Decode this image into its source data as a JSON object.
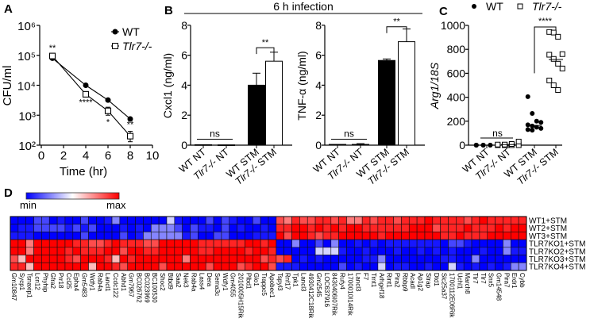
{
  "panels": {
    "a": "A",
    "b": "B",
    "c": "C",
    "d": "D"
  },
  "chart_data": [
    {
      "type": "line",
      "panel": "A",
      "xlabel": "Time (hr)",
      "ylabel": "CFU/ml",
      "yscale": "log",
      "ylim": [
        100,
        1000000
      ],
      "ytick_values": [
        100,
        1000,
        10000,
        100000,
        1000000
      ],
      "ytick_labels": [
        "10²",
        "10³",
        "10⁴",
        "10⁵",
        "10⁶"
      ],
      "xlim": [
        0,
        10
      ],
      "xticks": [
        0,
        2,
        4,
        6,
        8,
        10
      ],
      "legend": {
        "placement": "top-right",
        "entries": [
          "WT",
          "Tlr7-/-"
        ]
      },
      "series": [
        {
          "name": "WT",
          "marker": "filled-circle",
          "x": [
            1,
            4,
            6,
            8
          ],
          "y": [
            80000,
            10000,
            3200,
            750
          ]
        },
        {
          "name": "Tlr7-/-",
          "marker": "open-square",
          "x": [
            1,
            4,
            6,
            8
          ],
          "y": [
            95000,
            5000,
            1400,
            200
          ],
          "err_low": [
            85000,
            4500,
            1000,
            130
          ],
          "err_high": [
            105000,
            5600,
            1850,
            290
          ]
        }
      ],
      "annotations": [
        {
          "x": 1,
          "text": "**",
          "position": "above"
        },
        {
          "x": 4,
          "text": "****",
          "position": "below"
        },
        {
          "x": 6,
          "text": "*",
          "position": "below"
        },
        {
          "x": 8,
          "text": "**",
          "position": "above"
        }
      ]
    },
    {
      "type": "bar",
      "panel": "B",
      "title": "6 h infection",
      "ylabel": "Cxcl1 (ng/ml)",
      "categories": [
        "WT NT",
        "Tlr7-/- NT",
        "WT STM",
        "Tlr7-/- STM"
      ],
      "values": [
        0.03,
        0.02,
        4.0,
        5.6
      ],
      "errors": [
        0,
        0,
        0.8,
        0.6
      ],
      "fills": [
        "#000000",
        "#ffffff",
        "#000000",
        "#ffffff"
      ],
      "ylim": [
        0,
        8
      ],
      "yticks": [
        0,
        2,
        4,
        6,
        8
      ],
      "brackets": [
        {
          "from": 0,
          "to": 1,
          "level": 0.4,
          "text": "ns"
        },
        {
          "from": 2,
          "to": 3,
          "level": 6.5,
          "text": "**"
        }
      ]
    },
    {
      "type": "bar",
      "panel": "B",
      "ylabel": "TNF-α (ng/ml)",
      "categories": [
        "WT NT",
        "Tlr7-/- NT",
        "WT STM",
        "Tlr7-/- STM"
      ],
      "values": [
        0.05,
        0.05,
        5.65,
        6.9
      ],
      "errors": [
        0,
        0.05,
        0.1,
        0.85
      ],
      "fills": [
        "#000000",
        "#ffffff",
        "#000000",
        "#ffffff"
      ],
      "ylim": [
        0,
        8
      ],
      "yticks": [
        0,
        2,
        4,
        6,
        8
      ],
      "brackets": [
        {
          "from": 0,
          "to": 1,
          "level": 0.4,
          "text": "ns"
        },
        {
          "from": 2,
          "to": 3,
          "level": 7.9,
          "text": "**"
        }
      ]
    },
    {
      "type": "scatter",
      "panel": "C",
      "ylabel": "Arg1/18S",
      "categories": [
        "WT NT",
        "Tlr7-/- NT",
        "WT STM",
        "Tlr7-/- STM"
      ],
      "ylim": [
        0,
        1000
      ],
      "yticks": [
        0,
        200,
        400,
        600,
        800,
        1000
      ],
      "legend": {
        "placement": "top",
        "entries": [
          "WT",
          "Tlr7-/-"
        ]
      },
      "groups": [
        {
          "category": "WT NT",
          "marker": "filled-circle",
          "values": [
            0,
            0,
            0,
            0,
            0,
            0,
            0,
            0,
            0,
            0
          ],
          "mean": 0
        },
        {
          "category": "Tlr7-/- NT",
          "marker": "open-square",
          "values": [
            0,
            0,
            0,
            0,
            5,
            5,
            10,
            30
          ],
          "mean": 5
        },
        {
          "category": "WT STM",
          "marker": "filled-circle",
          "values": [
            405,
            265,
            200,
            190,
            170,
            160,
            150,
            140,
            130,
            125
          ],
          "mean": 165
        },
        {
          "category": "Tlr7-/- STM",
          "marker": "open-square",
          "values": [
            945,
            940,
            905,
            760,
            755,
            720,
            680,
            640,
            540,
            500,
            460
          ],
          "mean": 715
        }
      ],
      "brackets": [
        {
          "from": 0,
          "to": 1,
          "level": 60,
          "text": "ns"
        },
        {
          "from": 2,
          "to": 3,
          "level": 1000,
          "text": "****"
        }
      ]
    },
    {
      "type": "heatmap",
      "panel": "D",
      "colorbar": {
        "min_label": "min",
        "max_label": "max",
        "min_color": "#0000ff",
        "mid_color": "#ffffff",
        "max_color": "#ff0000"
      },
      "value_scale": "0 (min) to 9 (max), one digit per column",
      "rows": [
        "WT1+STM",
        "WT2+STM",
        "WT3+STM",
        "TLR7KO1+STM",
        "TLR7KO2+STM",
        "TLR7KO3+STM",
        "TLR7KO4+STM"
      ],
      "columns": [
        "Gm10847",
        "Sycp1",
        "Tsnaxip1",
        "Lcn12",
        "Phyhip",
        "Gfra2",
        "Prr18",
        "Ccl25",
        "Epha4",
        "Gm5483",
        "Wdfy1",
        "Rab4a",
        "Lancl1",
        "Ccdc122",
        "Abhd1",
        "Gm7967",
        "BC026762",
        "BC023969",
        "BC100530",
        "Shoc2",
        "Btbd9",
        "Saa2",
        "Nek3",
        "Rab4a",
        "Lass4",
        "Dera",
        "Sema3c",
        "Wdfy1",
        "Gm4055",
        "2010005H15Rik",
        "Plbd1",
        "Glo1",
        "Trappc5",
        "Apobec1",
        "Tspyl3",
        "Rnf17",
        "Tpk1",
        "Lancl3",
        "4930412C18Rik",
        "Gm2545",
        "LOC637916",
        "8430406I07Rik",
        "Rufy4",
        "1700010I14Rik",
        "Lancl3",
        "F7",
        "Trnt1",
        "Arhgef18",
        "Rint1",
        "Pira2",
        "Rbbp9",
        "Acadl",
        "Ap1g2",
        "Strap",
        "Dtd1",
        "Slc25a37",
        "1700112E06Rik",
        "Uchl1",
        "March8",
        "Tlr7",
        "Tlr7",
        "Snx5",
        "Gm14548",
        "Pira7",
        "Erdr1",
        "Cybb"
      ],
      "values": [
        "000220100200130000004100020210020076877887866878878889888878988888",
        "011222212120001010333202110201001088998989899888888999788898889899",
        "111000000200002013333312002200011197998788999998999999988988899999",
        "996999998877898887799999888888998900300203001010111111102210000300",
        "996999989888997998899999889999899800000444100100010010101000100311",
        "759999987999859899999969999999997878010100000113000000011003000000",
        "885999999959987999979999979997899711100000201004011001004101010133"
      ]
    }
  ]
}
